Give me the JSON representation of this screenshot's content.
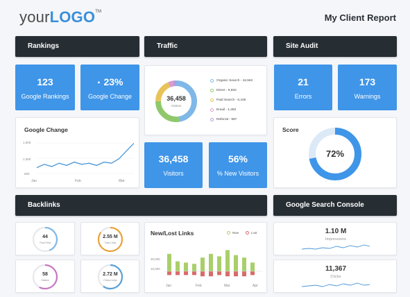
{
  "header": {
    "logo_prefix": "your",
    "logo_main": "LOGO",
    "logo_tm": "TM",
    "report_title": "My Client Report"
  },
  "sections": {
    "rankings": "Rankings",
    "traffic": "Traffic",
    "site_audit": "Site Audit",
    "backlinks": "Backlinks",
    "search_console": "Google Search Console"
  },
  "rankings": {
    "google_rankings": {
      "value": "123",
      "label": "Google Rankings"
    },
    "google_change": {
      "value": "23%",
      "label": "Google Change",
      "arrow": "▲"
    },
    "chart": {
      "title": "Google Change",
      "y_ticks": [
        "1,000",
        "1,000",
        "500"
      ],
      "x_ticks": [
        "Jan",
        "Feb",
        "Mar"
      ]
    }
  },
  "traffic": {
    "donut": {
      "value": "36,458",
      "label": "Visitors"
    },
    "legend": [
      {
        "label": "Organic Search - 16,562",
        "color": "#7fb8e8"
      },
      {
        "label": "Direct - 9,602",
        "color": "#8fc86a"
      },
      {
        "label": "Paid Search - 6,446",
        "color": "#e8c35a"
      },
      {
        "label": "Email - 1,282",
        "color": "#d99ad0"
      },
      {
        "label": "Referral - 997",
        "color": "#b59bd9"
      }
    ],
    "visitors": {
      "value": "36,458",
      "label": "Visitors"
    },
    "new_visitors": {
      "value": "56%",
      "label": "% New Visitors"
    }
  },
  "site_audit": {
    "errors": {
      "value": "21",
      "label": "Errors"
    },
    "warnings": {
      "value": "173",
      "label": "Warnings"
    },
    "score": {
      "title": "Score",
      "value": "72%",
      "fraction": 0.72
    }
  },
  "backlinks": {
    "gauges": [
      {
        "value": "44",
        "label": "Trust Flow",
        "color": "#7fb8e8",
        "fraction": 0.44
      },
      {
        "value": "2.55 M",
        "label": "Total Links",
        "color": "#e8a23a",
        "fraction": 0.85
      },
      {
        "value": "58",
        "label": "Citation",
        "color": "#c678c0",
        "fraction": 0.58
      },
      {
        "value": "2.72 M",
        "label": "Follow Links",
        "color": "#5aa0d8",
        "fraction": 0.6
      }
    ],
    "new_lost": {
      "title": "New/Lost Links",
      "legend_new": "New",
      "legend_lost": "Lost",
      "y_ticks": [
        "20,000",
        "10,000"
      ],
      "x_ticks": [
        "Jan",
        "Feb",
        "Mar",
        "Apr"
      ]
    }
  },
  "search_console": {
    "impressions": {
      "value": "1.10 M",
      "label": "Impressions"
    },
    "clicks": {
      "value": "11,367",
      "label": "Clicks"
    }
  },
  "colors": {
    "accent": "#3f95e8",
    "dark": "#262d33",
    "line": "#4a97d8",
    "new": "#a9cf6a",
    "lost": "#d96a6a"
  },
  "chart_data": [
    {
      "type": "line",
      "title": "Google Change",
      "x": [
        "Jan",
        "",
        "",
        "",
        "",
        "",
        "Feb",
        "",
        "",
        "",
        "",
        "",
        "",
        "Mar"
      ],
      "values": [
        18,
        24,
        20,
        26,
        22,
        28,
        24,
        26,
        22,
        28,
        26,
        34,
        48,
        62
      ]
    },
    {
      "type": "bar",
      "title": "New/Lost Links",
      "series": [
        {
          "name": "New",
          "values": [
            14,
            8,
            7,
            6,
            11,
            14,
            12,
            17,
            13,
            11,
            7
          ]
        },
        {
          "name": "Lost",
          "values": [
            -3,
            -3,
            -3,
            -3,
            -4,
            -4,
            -3,
            -4,
            -4,
            -4,
            -3
          ]
        }
      ]
    }
  ]
}
